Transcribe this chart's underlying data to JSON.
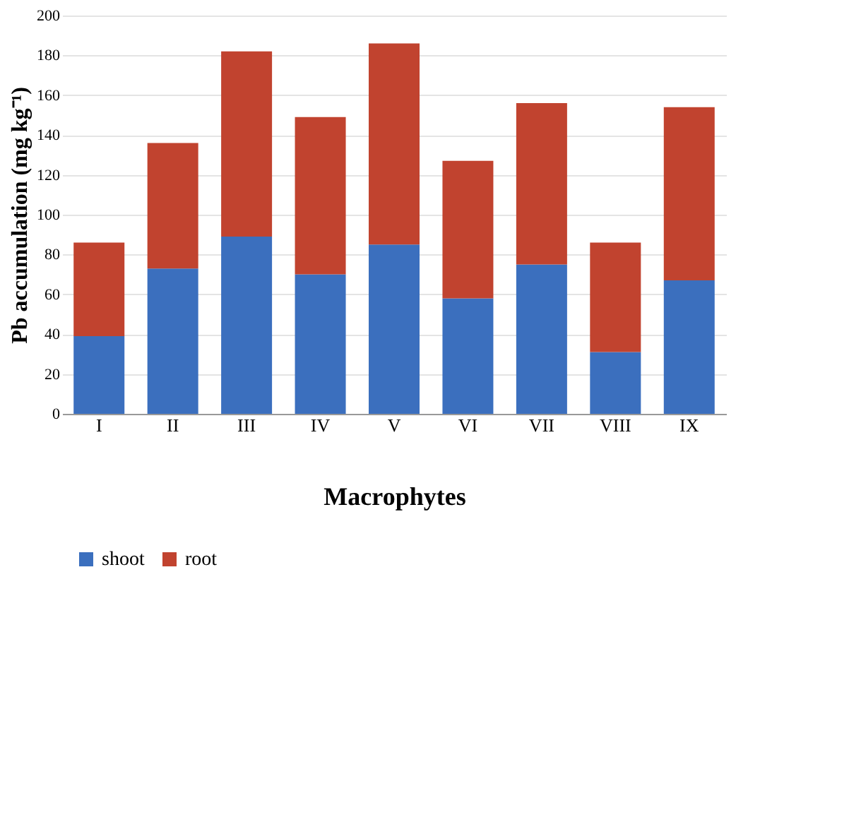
{
  "chart_data": {
    "type": "bar",
    "stacked": true,
    "xlabel": "Macrophytes",
    "ylabel": "Pb accumulation (mg kg⁻¹)",
    "categories": [
      "I",
      "II",
      "III",
      "IV",
      "V",
      "VI",
      "VII",
      "VIII",
      "IX"
    ],
    "series": [
      {
        "name": "shoot",
        "color": "#3b6fbe",
        "values": [
          39,
          73,
          89,
          70,
          85,
          58,
          75,
          31,
          67
        ]
      },
      {
        "name": "root",
        "color": "#c1432f",
        "values": [
          47,
          63,
          93,
          79,
          101,
          69,
          81,
          55,
          87
        ]
      }
    ],
    "ylim": [
      0,
      200
    ],
    "yticks": [
      0,
      20,
      40,
      60,
      80,
      100,
      120,
      140,
      160,
      180,
      200
    ],
    "grid": "y",
    "legend": "bottom"
  }
}
